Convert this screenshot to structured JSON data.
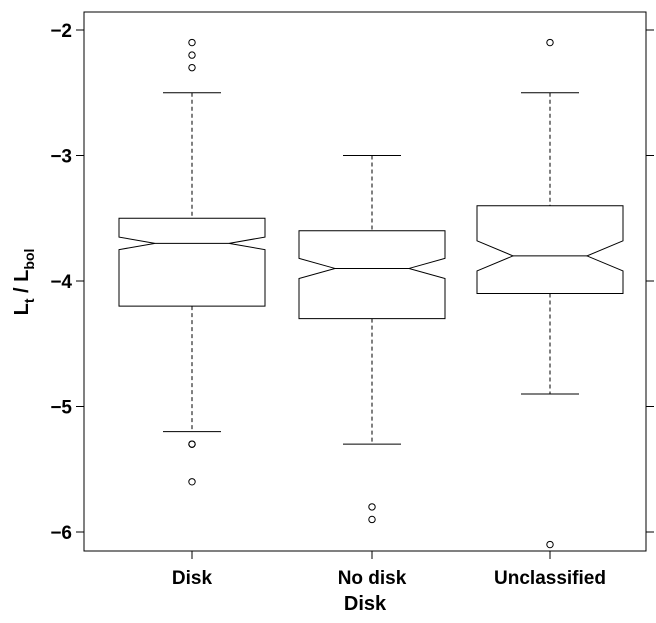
{
  "chart_data": {
    "type": "boxplot",
    "notched": true,
    "xlabel": "Disk",
    "ylabel_main": "L",
    "ylabel_sub1": "t",
    "ylabel_mid": " / L",
    "ylabel_sub2": "bol",
    "ylim": [
      -6.15,
      -1.85
    ],
    "yticks": [
      -6,
      -5,
      -4,
      -3,
      -2
    ],
    "ytick_labels": [
      "−6",
      "−5",
      "−4",
      "−3",
      "−2"
    ],
    "categories": [
      "Disk",
      "No disk",
      "Unclassified"
    ],
    "boxes": [
      {
        "whisker_low": -5.2,
        "q1": -4.2,
        "median": -3.7,
        "q3": -3.5,
        "whisker_high": -2.5,
        "notch_low": -3.75,
        "notch_high": -3.65,
        "outliers": [
          -2.1,
          -2.2,
          -2.3,
          -5.3,
          -5.3,
          -5.6
        ]
      },
      {
        "whisker_low": -5.3,
        "q1": -4.3,
        "median": -3.9,
        "q3": -3.6,
        "whisker_high": -3.0,
        "notch_low": -3.98,
        "notch_high": -3.82,
        "outliers": [
          -5.8,
          -5.9
        ]
      },
      {
        "whisker_low": -4.9,
        "q1": -4.1,
        "median": -3.8,
        "q3": -3.4,
        "whisker_high": -2.5,
        "notch_low": -3.92,
        "notch_high": -3.68,
        "outliers": [
          -2.1,
          -6.1
        ]
      }
    ]
  }
}
